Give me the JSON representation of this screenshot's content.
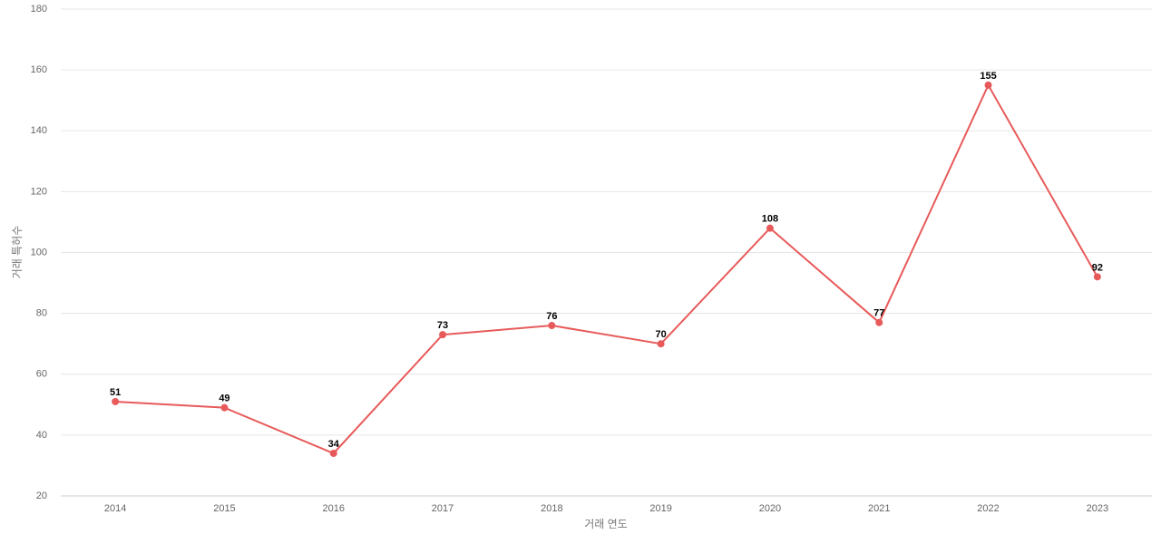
{
  "chart_data": {
    "type": "line",
    "categories": [
      "2014",
      "2015",
      "2016",
      "2017",
      "2018",
      "2019",
      "2020",
      "2021",
      "2022",
      "2023"
    ],
    "values": [
      51,
      49,
      34,
      73,
      76,
      70,
      108,
      77,
      155,
      92
    ],
    "color": "#e85a5a",
    "x_label": "거래 연도",
    "y_label": "거래 특허수",
    "ylim": [
      20,
      180
    ],
    "yticks": [
      20,
      40,
      60,
      80,
      100,
      120,
      140,
      160,
      180
    ],
    "grid": true
  }
}
